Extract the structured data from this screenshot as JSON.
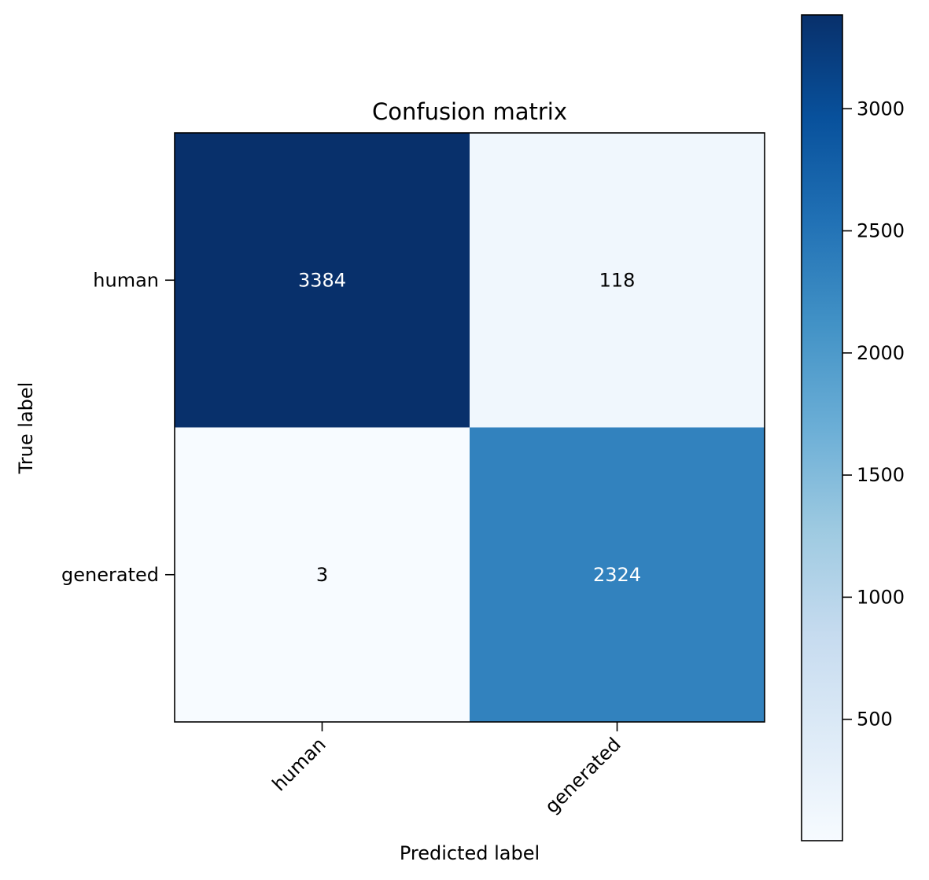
{
  "chart_data": {
    "type": "heatmap",
    "title": "Confusion matrix",
    "xlabel": "Predicted label",
    "ylabel": "True label",
    "x_categories": [
      "human",
      "generated"
    ],
    "y_categories": [
      "human",
      "generated"
    ],
    "values": [
      [
        3384,
        118
      ],
      [
        3,
        2324
      ]
    ],
    "colormap": "Blues",
    "color_range": [
      3,
      3384
    ],
    "colorbar_ticks": [
      500,
      1000,
      1500,
      2000,
      2500,
      3000
    ],
    "colorbar_tick_labels": [
      "500",
      "1000",
      "1500",
      "2000",
      "2500",
      "3000"
    ],
    "grid": false
  }
}
